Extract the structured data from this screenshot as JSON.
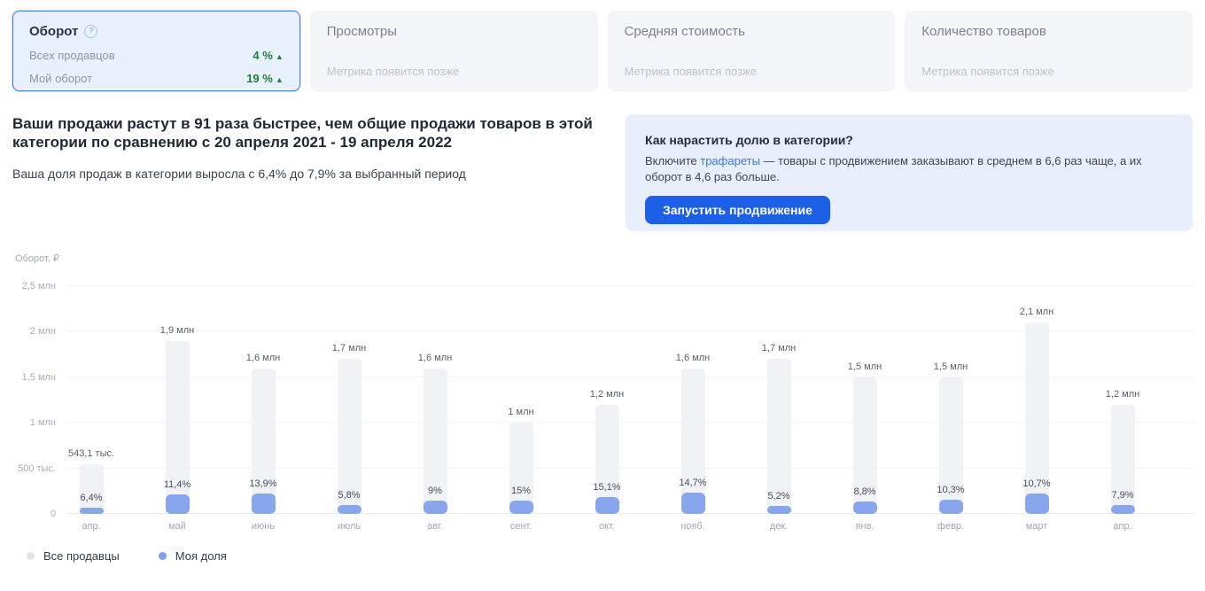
{
  "colors": {
    "selected_card_border": "#4b7fd6",
    "selected_card_bg": "#e9f1fc",
    "positive_green": "#1e7e3c",
    "button_blue": "#1d60e8",
    "link_blue": "#3b76e8",
    "bar_total_gray": "#f0f2f6",
    "bar_share_blue": "#87a6ed",
    "promo_panel_bg": "#e8eefb"
  },
  "icons": {
    "help_icon": "?",
    "trend_up_icon": "▲"
  },
  "cards": [
    {
      "title": "Оборот",
      "selected": true,
      "rows": [
        {
          "label": "Всех продавцов",
          "value": "4 %",
          "trend": "up"
        },
        {
          "label": "Мой оборот",
          "value": "19 %",
          "trend": "up"
        }
      ]
    },
    {
      "title": "Просмотры",
      "placeholder": "Метрика появится позже"
    },
    {
      "title": "Средняя стоимость",
      "placeholder": "Метрика появится позже"
    },
    {
      "title": "Количество товаров",
      "placeholder": "Метрика появится позже"
    }
  ],
  "insight": {
    "headline": "Ваши продажи растут в 91 раза быстрее, чем общие продажи товаров в этой категории по сравнению с 20 апреля 2021 - 19 апреля 2022",
    "subtext": "Ваша доля продаж в категории выросла с 6,4% до 7,9% за выбранный период"
  },
  "promo": {
    "title": "Как нарастить долю в категории?",
    "body_before_link": "Включите ",
    "link_text": "трафареты",
    "body_after_link": " — товары с продвижением заказывают в среднем в 6,6 раз чаще, а их оборот в 4,6 раз больше.",
    "button_label": "Запустить продвижение"
  },
  "chart_data": {
    "type": "bar",
    "title": "Оборот, ₽",
    "categories": [
      "апр.",
      "май",
      "июнь",
      "июль",
      "авг.",
      "сент.",
      "окт.",
      "нояб.",
      "дек.",
      "янв.",
      "февр.",
      "март",
      "апр."
    ],
    "series": [
      {
        "name": "Все продавцы",
        "values": [
          543100,
          1900000,
          1600000,
          1700000,
          1600000,
          1000000,
          1200000,
          1600000,
          1700000,
          1500000,
          1500000,
          2100000,
          1200000
        ],
        "labels": [
          "543,1 тыс.",
          "1,9 млн",
          "1,6 млн",
          "1,7 млн",
          "1,6 млн",
          "1 млн",
          "1,2 млн",
          "1,6 млн",
          "1,7 млн",
          "1,5 млн",
          "1,5 млн",
          "2,1 млн",
          "1,2 млн"
        ]
      },
      {
        "name": "Моя доля",
        "share_percent": [
          6.4,
          11.4,
          13.9,
          5.8,
          9,
          15,
          15.1,
          14.7,
          5.2,
          8.8,
          10.3,
          10.7,
          7.9
        ],
        "labels": [
          "6,4%",
          "11,4%",
          "13,9%",
          "5,8%",
          "9%",
          "15%",
          "15,1%",
          "14,7%",
          "5,2%",
          "8,8%",
          "10,3%",
          "10,7%",
          "7,9%"
        ]
      }
    ],
    "ylabel": "Оборот, ₽",
    "ylim": [
      0,
      2500000
    ],
    "y_ticks": [
      {
        "value": 0,
        "label": "0"
      },
      {
        "value": 500000,
        "label": "500 тыс."
      },
      {
        "value": 1000000,
        "label": "1 млн"
      },
      {
        "value": 1500000,
        "label": "1,5 млн"
      },
      {
        "value": 2000000,
        "label": "2 млн"
      },
      {
        "value": 2500000,
        "label": "2,5 млн"
      }
    ],
    "grid": true,
    "legend_position": "bottom-left",
    "legend": [
      "Все продавцы",
      "Моя доля"
    ]
  }
}
